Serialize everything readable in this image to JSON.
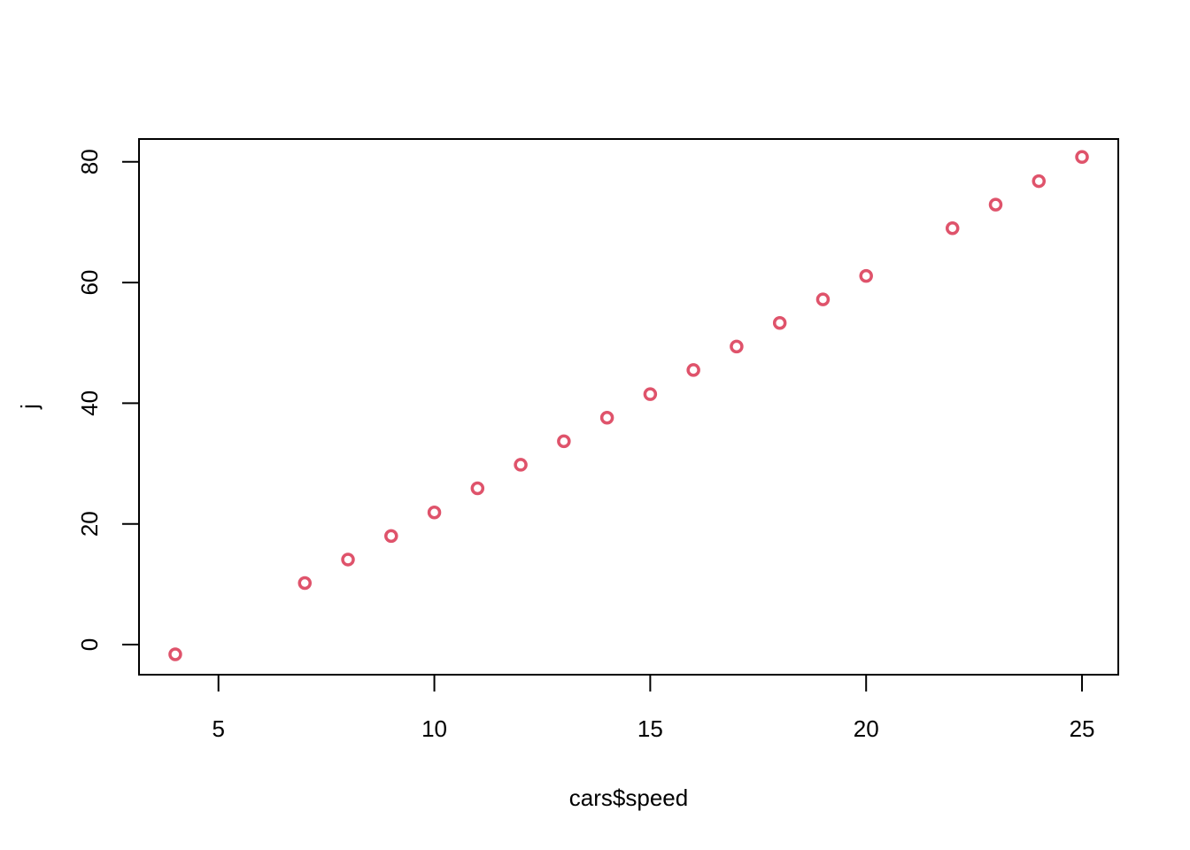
{
  "chart_data": {
    "type": "scatter",
    "title": "",
    "xlabel": "cars$speed",
    "ylabel": "j",
    "xlim": [
      3.16,
      25.84
    ],
    "ylim": [
      -4.98,
      83.78
    ],
    "x_ticks": [
      5,
      10,
      15,
      20,
      25
    ],
    "y_ticks": [
      0,
      20,
      40,
      60,
      80
    ],
    "grid": false,
    "marker": "open-circle",
    "point_color": "#DF536B",
    "points": [
      {
        "x": 4,
        "y": -1.6
      },
      {
        "x": 7,
        "y": 10.2
      },
      {
        "x": 8,
        "y": 14.1
      },
      {
        "x": 9,
        "y": 18.0
      },
      {
        "x": 10,
        "y": 21.9
      },
      {
        "x": 11,
        "y": 25.9
      },
      {
        "x": 12,
        "y": 29.8
      },
      {
        "x": 13,
        "y": 33.7
      },
      {
        "x": 14,
        "y": 37.6
      },
      {
        "x": 15,
        "y": 41.5
      },
      {
        "x": 16,
        "y": 45.5
      },
      {
        "x": 17,
        "y": 49.4
      },
      {
        "x": 18,
        "y": 53.3
      },
      {
        "x": 19,
        "y": 57.2
      },
      {
        "x": 20,
        "y": 61.1
      },
      {
        "x": 22,
        "y": 69.0
      },
      {
        "x": 23,
        "y": 72.9
      },
      {
        "x": 24,
        "y": 76.8
      },
      {
        "x": 25,
        "y": 80.8
      }
    ]
  }
}
